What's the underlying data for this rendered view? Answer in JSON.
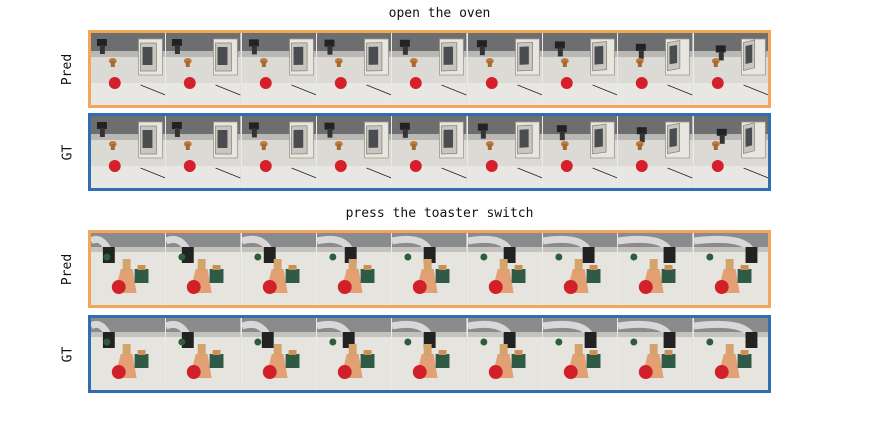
{
  "tasks": [
    {
      "title": "open the oven",
      "scene": "oven",
      "rows": [
        {
          "label": "Pred",
          "kind": "pred",
          "progress": [
            0.0,
            0.0,
            0.05,
            0.08,
            0.1,
            0.15,
            0.3,
            0.6,
            0.8
          ]
        },
        {
          "label": "GT",
          "kind": "gt",
          "progress": [
            0.0,
            0.0,
            0.05,
            0.08,
            0.1,
            0.2,
            0.4,
            0.65,
            0.85
          ]
        }
      ]
    },
    {
      "title": "press the toaster switch",
      "scene": "toaster",
      "rows": [
        {
          "label": "Pred",
          "kind": "pred",
          "progress": [
            0.0,
            0.1,
            0.25,
            0.4,
            0.5,
            0.6,
            0.7,
            0.85,
            1.0
          ]
        },
        {
          "label": "GT",
          "kind": "gt",
          "progress": [
            0.0,
            0.1,
            0.2,
            0.35,
            0.5,
            0.6,
            0.75,
            0.85,
            1.0
          ]
        }
      ]
    }
  ],
  "colors": {
    "pred_border": "#f2a65a",
    "gt_border": "#2f6fb0"
  }
}
